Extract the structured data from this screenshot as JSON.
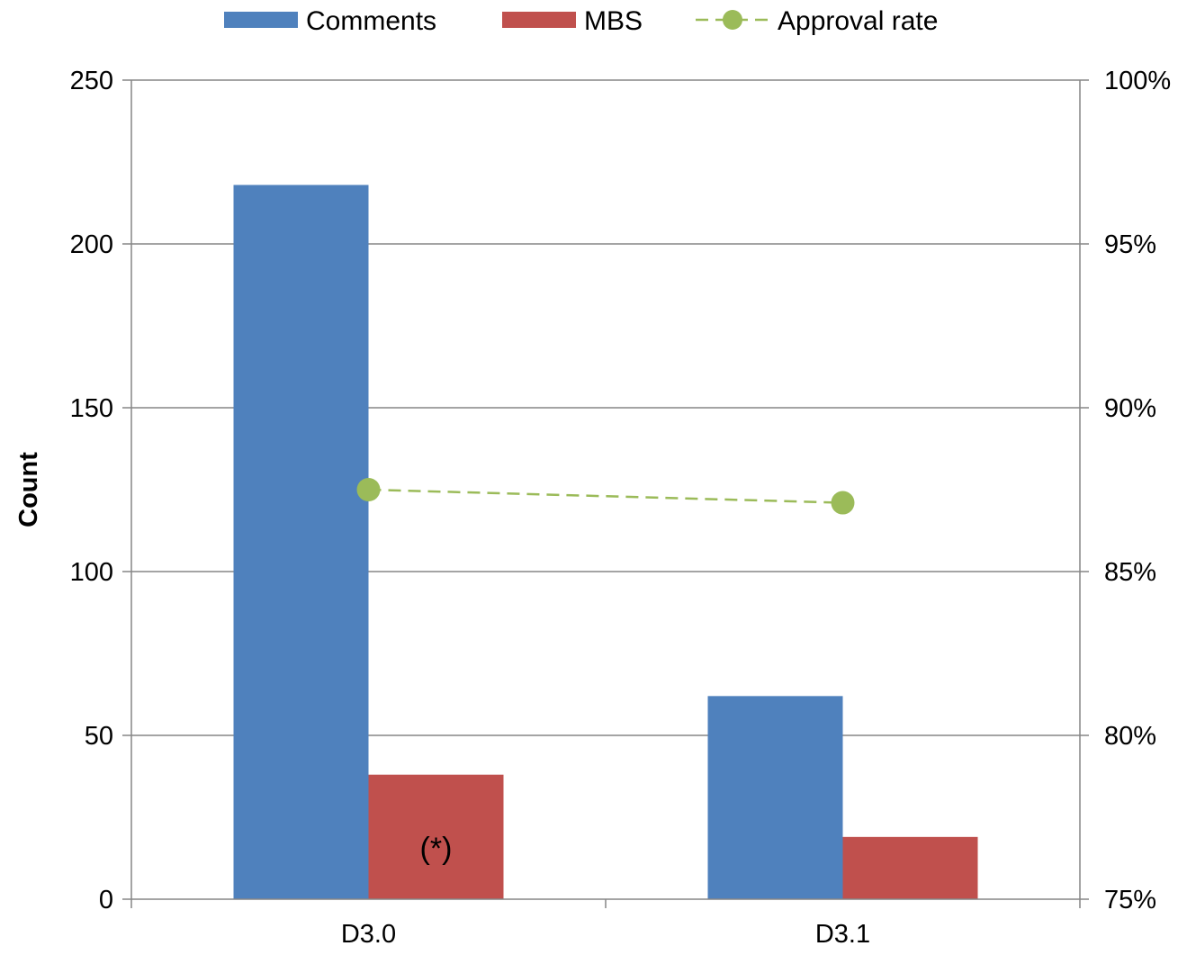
{
  "chart_data": {
    "type": "bar",
    "categories": [
      "D3.0",
      "D3.1"
    ],
    "series": [
      {
        "name": "Comments",
        "kind": "bar",
        "axis": "left",
        "color": "#4F81BD",
        "values": [
          218,
          62
        ]
      },
      {
        "name": "MBS",
        "kind": "bar",
        "axis": "left",
        "color": "#C0504D",
        "values": [
          38,
          19
        ]
      },
      {
        "name": "Approval rate",
        "kind": "line",
        "axis": "right",
        "color": "#9BBB59",
        "line_style": "dashed",
        "marker": "circle",
        "values": [
          0.875,
          0.871
        ]
      }
    ],
    "ylabel": "Count",
    "ylim": [
      0,
      250
    ],
    "yticks": [
      "0",
      "50",
      "100",
      "150",
      "200",
      "250"
    ],
    "y2lim": [
      0.75,
      1.0
    ],
    "y2ticks": [
      "75%",
      "80%",
      "85%",
      "90%",
      "95%",
      "100%"
    ],
    "grid": true,
    "legend_position": "top",
    "annotations": [
      {
        "text": "(*)",
        "category": "D3.0",
        "series": "MBS"
      }
    ]
  }
}
